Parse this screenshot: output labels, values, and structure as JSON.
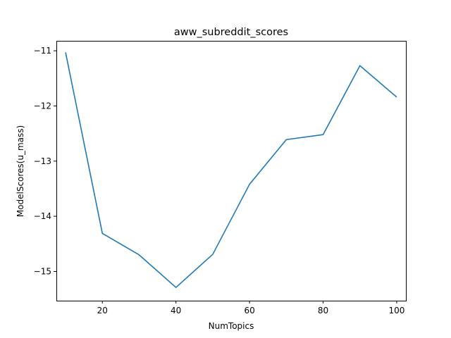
{
  "chart_data": {
    "type": "line",
    "title": "aww_subreddit_scores",
    "xlabel": "NumTopics",
    "ylabel": "ModelScores(u_mass)",
    "xlim": [
      7.5,
      102.5
    ],
    "ylim": [
      -15.53,
      -10.82
    ],
    "xticks": [
      20,
      40,
      60,
      80,
      100
    ],
    "yticks": [
      -11,
      -12,
      -13,
      -14,
      -15
    ],
    "grid": false,
    "series": [
      {
        "color": "#1f77b4",
        "x": [
          10,
          20,
          30,
          40,
          50,
          60,
          70,
          80,
          90,
          100
        ],
        "y": [
          -11.03,
          -14.31,
          -14.7,
          -15.29,
          -14.69,
          -13.42,
          -12.61,
          -12.52,
          -11.27,
          -11.84
        ]
      }
    ]
  }
}
